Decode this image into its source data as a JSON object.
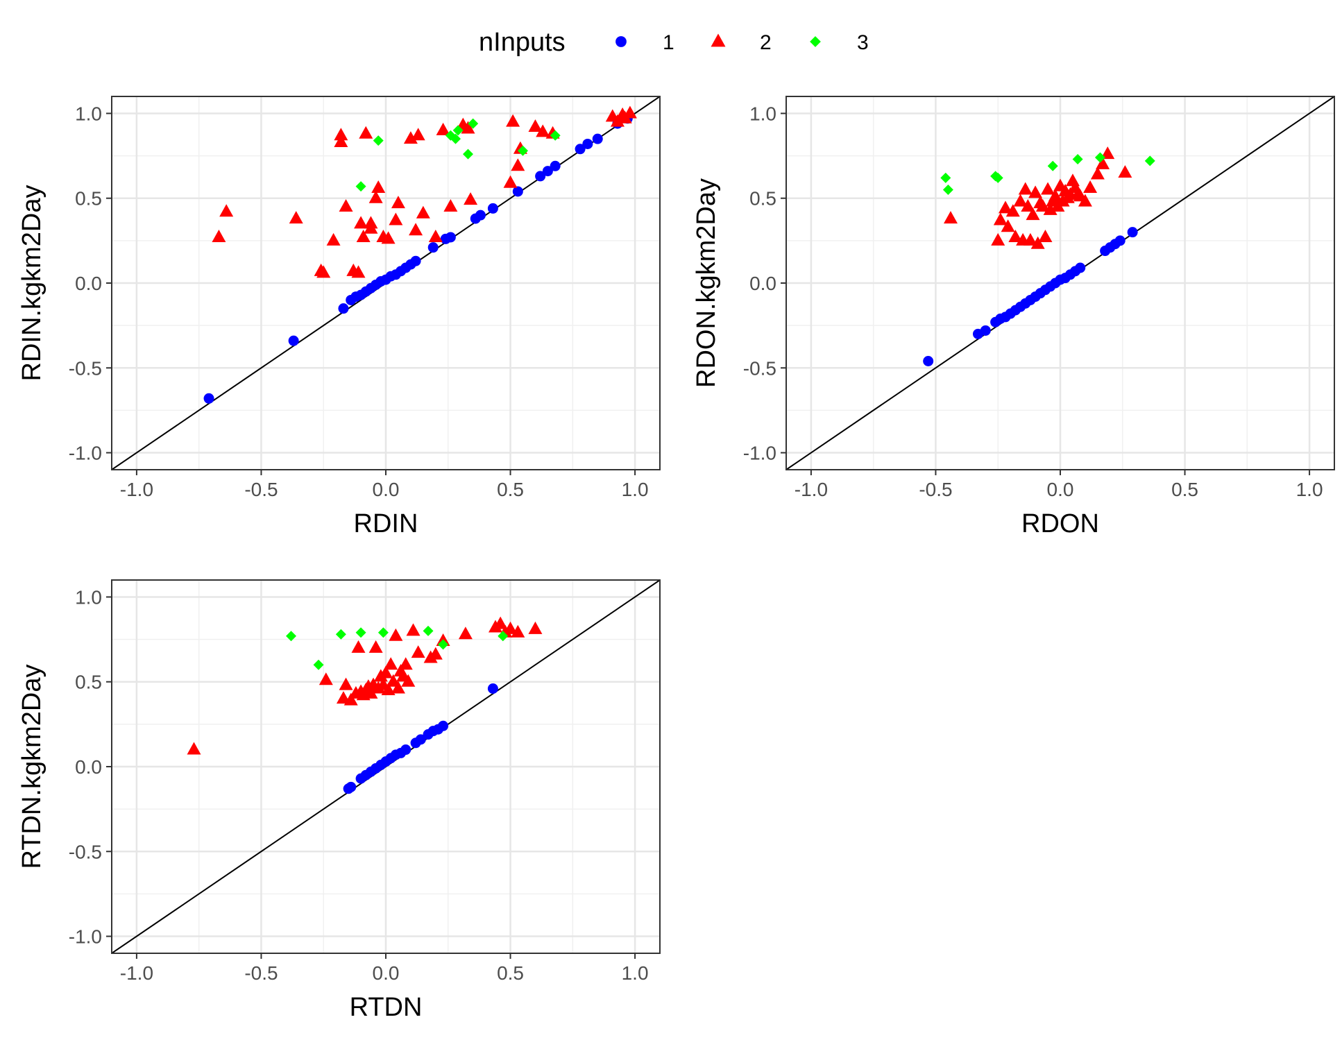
{
  "legend": {
    "title": "nInputs",
    "position": "top",
    "entries": [
      {
        "label": "1",
        "color": "#0000ff",
        "shape": "circle"
      },
      {
        "label": "2",
        "color": "#ff0000",
        "shape": "triangle"
      },
      {
        "label": "3",
        "color": "#00ff00",
        "shape": "diamond"
      }
    ]
  },
  "chart_data": [
    {
      "type": "scatter",
      "xlabel": "RDIN",
      "ylabel": "RDIN.kgkm2Day",
      "xlim": [
        -1.1,
        1.1
      ],
      "ylim": [
        -1.1,
        1.1
      ],
      "xticks": [
        "-1.0",
        "-0.5",
        "0.0",
        "0.5",
        "1.0"
      ],
      "yticks": [
        "-1.0",
        "-0.5",
        "0.0",
        "0.5",
        "1.0"
      ],
      "grid": true,
      "reference_line": "y = x",
      "series": [
        {
          "name": "1",
          "color": "#0000ff",
          "shape": "circle",
          "x": [
            -0.71,
            -0.37,
            -0.17,
            -0.14,
            -0.12,
            -0.1,
            -0.08,
            -0.06,
            -0.04,
            -0.02,
            0.0,
            0.02,
            0.04,
            0.06,
            0.08,
            0.1,
            0.12,
            0.19,
            0.24,
            0.26,
            0.36,
            0.38,
            0.43,
            0.53,
            0.62,
            0.65,
            0.68,
            0.78,
            0.81,
            0.85,
            0.93,
            0.97
          ],
          "y": [
            -0.68,
            -0.34,
            -0.15,
            -0.1,
            -0.08,
            -0.07,
            -0.05,
            -0.03,
            -0.01,
            0.01,
            0.02,
            0.04,
            0.05,
            0.07,
            0.09,
            0.11,
            0.13,
            0.21,
            0.26,
            0.27,
            0.38,
            0.4,
            0.44,
            0.54,
            0.63,
            0.66,
            0.69,
            0.79,
            0.82,
            0.85,
            0.94,
            0.97
          ]
        },
        {
          "name": "2",
          "color": "#ff0000",
          "shape": "triangle",
          "x": [
            -0.67,
            -0.64,
            -0.36,
            -0.26,
            -0.25,
            -0.21,
            -0.18,
            -0.18,
            -0.16,
            -0.13,
            -0.11,
            -0.1,
            -0.09,
            -0.08,
            -0.06,
            -0.06,
            -0.04,
            -0.03,
            -0.01,
            0.01,
            0.04,
            0.05,
            0.1,
            0.12,
            0.13,
            0.15,
            0.2,
            0.23,
            0.26,
            0.31,
            0.33,
            0.34,
            0.5,
            0.51,
            0.53,
            0.54,
            0.6,
            0.63,
            0.67,
            0.91,
            0.93,
            0.95,
            0.96,
            0.98
          ],
          "y": [
            0.27,
            0.42,
            0.38,
            0.07,
            0.06,
            0.25,
            0.83,
            0.87,
            0.45,
            0.07,
            0.06,
            0.35,
            0.27,
            0.88,
            0.32,
            0.35,
            0.5,
            0.56,
            0.27,
            0.26,
            0.37,
            0.47,
            0.85,
            0.31,
            0.87,
            0.41,
            0.27,
            0.9,
            0.45,
            0.93,
            0.91,
            0.49,
            0.59,
            0.95,
            0.69,
            0.79,
            0.92,
            0.89,
            0.88,
            0.98,
            0.95,
            0.99,
            0.97,
            1.0
          ]
        },
        {
          "name": "3",
          "color": "#00ff00",
          "shape": "diamond",
          "x": [
            -0.1,
            -0.03,
            0.26,
            0.28,
            0.29,
            0.33,
            0.35,
            0.55,
            0.68
          ],
          "y": [
            0.57,
            0.84,
            0.87,
            0.85,
            0.9,
            0.76,
            0.94,
            0.78,
            0.87
          ]
        }
      ]
    },
    {
      "type": "scatter",
      "xlabel": "RDON",
      "ylabel": "RDON.kgkm2Day",
      "xlim": [
        -1.1,
        1.1
      ],
      "ylim": [
        -1.1,
        1.1
      ],
      "xticks": [
        "-1.0",
        "-0.5",
        "0.0",
        "0.5",
        "1.0"
      ],
      "yticks": [
        "-1.0",
        "-0.5",
        "0.0",
        "0.5",
        "1.0"
      ],
      "grid": true,
      "reference_line": "y = x",
      "series": [
        {
          "name": "1",
          "color": "#0000ff",
          "shape": "circle",
          "x": [
            -0.53,
            -0.33,
            -0.3,
            -0.26,
            -0.24,
            -0.22,
            -0.2,
            -0.18,
            -0.16,
            -0.14,
            -0.12,
            -0.1,
            -0.08,
            -0.06,
            -0.04,
            -0.02,
            0.0,
            0.02,
            0.04,
            0.06,
            0.08,
            0.18,
            0.2,
            0.22,
            0.24,
            0.29
          ],
          "y": [
            -0.46,
            -0.3,
            -0.28,
            -0.23,
            -0.21,
            -0.2,
            -0.18,
            -0.16,
            -0.14,
            -0.12,
            -0.1,
            -0.08,
            -0.06,
            -0.04,
            -0.02,
            0.0,
            0.02,
            0.03,
            0.05,
            0.07,
            0.09,
            0.19,
            0.21,
            0.23,
            0.25,
            0.3
          ]
        },
        {
          "name": "2",
          "color": "#ff0000",
          "shape": "triangle",
          "x": [
            -0.44,
            -0.25,
            -0.24,
            -0.22,
            -0.21,
            -0.19,
            -0.18,
            -0.16,
            -0.15,
            -0.14,
            -0.13,
            -0.12,
            -0.11,
            -0.1,
            -0.09,
            -0.08,
            -0.07,
            -0.06,
            -0.05,
            -0.04,
            -0.03,
            -0.02,
            -0.01,
            0.0,
            0.01,
            0.02,
            0.03,
            0.04,
            0.05,
            0.06,
            0.07,
            0.08,
            0.1,
            0.12,
            0.15,
            0.17,
            0.19,
            0.26
          ],
          "y": [
            0.38,
            0.25,
            0.37,
            0.44,
            0.33,
            0.42,
            0.27,
            0.48,
            0.25,
            0.55,
            0.45,
            0.25,
            0.4,
            0.53,
            0.23,
            0.47,
            0.45,
            0.27,
            0.55,
            0.43,
            0.48,
            0.51,
            0.45,
            0.57,
            0.48,
            0.54,
            0.5,
            0.52,
            0.6,
            0.56,
            0.52,
            0.51,
            0.48,
            0.56,
            0.64,
            0.7,
            0.76,
            0.65
          ]
        },
        {
          "name": "3",
          "color": "#00ff00",
          "shape": "diamond",
          "x": [
            -0.46,
            -0.45,
            -0.26,
            -0.25,
            -0.03,
            0.07,
            0.16,
            0.36
          ],
          "y": [
            0.62,
            0.55,
            0.63,
            0.62,
            0.69,
            0.73,
            0.74,
            0.72
          ]
        }
      ]
    },
    {
      "type": "scatter",
      "xlabel": "RTDN",
      "ylabel": "RTDN.kgkm2Day",
      "xlim": [
        -1.1,
        1.1
      ],
      "ylim": [
        -1.1,
        1.1
      ],
      "xticks": [
        "-1.0",
        "-0.5",
        "0.0",
        "0.5",
        "1.0"
      ],
      "yticks": [
        "-1.0",
        "-0.5",
        "0.0",
        "0.5",
        "1.0"
      ],
      "grid": true,
      "reference_line": "y = x",
      "series": [
        {
          "name": "1",
          "color": "#0000ff",
          "shape": "circle",
          "x": [
            -0.15,
            -0.14,
            -0.1,
            -0.08,
            -0.06,
            -0.04,
            -0.02,
            0.0,
            0.02,
            0.04,
            0.06,
            0.08,
            0.12,
            0.14,
            0.17,
            0.19,
            0.21,
            0.23,
            0.43
          ],
          "y": [
            -0.13,
            -0.12,
            -0.07,
            -0.05,
            -0.03,
            -0.01,
            0.01,
            0.03,
            0.05,
            0.07,
            0.08,
            0.1,
            0.14,
            0.16,
            0.19,
            0.21,
            0.22,
            0.24,
            0.46
          ]
        },
        {
          "name": "2",
          "color": "#ff0000",
          "shape": "triangle",
          "x": [
            -0.77,
            -0.24,
            -0.17,
            -0.16,
            -0.14,
            -0.12,
            -0.11,
            -0.1,
            -0.09,
            -0.08,
            -0.07,
            -0.06,
            -0.05,
            -0.04,
            -0.03,
            -0.02,
            -0.01,
            0.0,
            0.01,
            0.02,
            0.03,
            0.04,
            0.05,
            0.06,
            0.07,
            0.08,
            0.09,
            0.11,
            0.13,
            0.18,
            0.2,
            0.23,
            0.32,
            0.44,
            0.46,
            0.48,
            0.5,
            0.53,
            0.6
          ],
          "y": [
            0.1,
            0.51,
            0.4,
            0.48,
            0.39,
            0.43,
            0.7,
            0.44,
            0.42,
            0.45,
            0.47,
            0.43,
            0.48,
            0.7,
            0.46,
            0.53,
            0.48,
            0.55,
            0.45,
            0.6,
            0.5,
            0.77,
            0.46,
            0.56,
            0.53,
            0.6,
            0.5,
            0.8,
            0.67,
            0.64,
            0.66,
            0.74,
            0.78,
            0.82,
            0.84,
            0.79,
            0.81,
            0.79,
            0.81
          ]
        },
        {
          "name": "3",
          "color": "#00ff00",
          "shape": "diamond",
          "x": [
            -0.38,
            -0.27,
            -0.18,
            -0.1,
            -0.01,
            0.17,
            0.23,
            0.47
          ],
          "y": [
            0.77,
            0.6,
            0.78,
            0.79,
            0.79,
            0.8,
            0.72,
            0.77
          ]
        }
      ]
    }
  ]
}
